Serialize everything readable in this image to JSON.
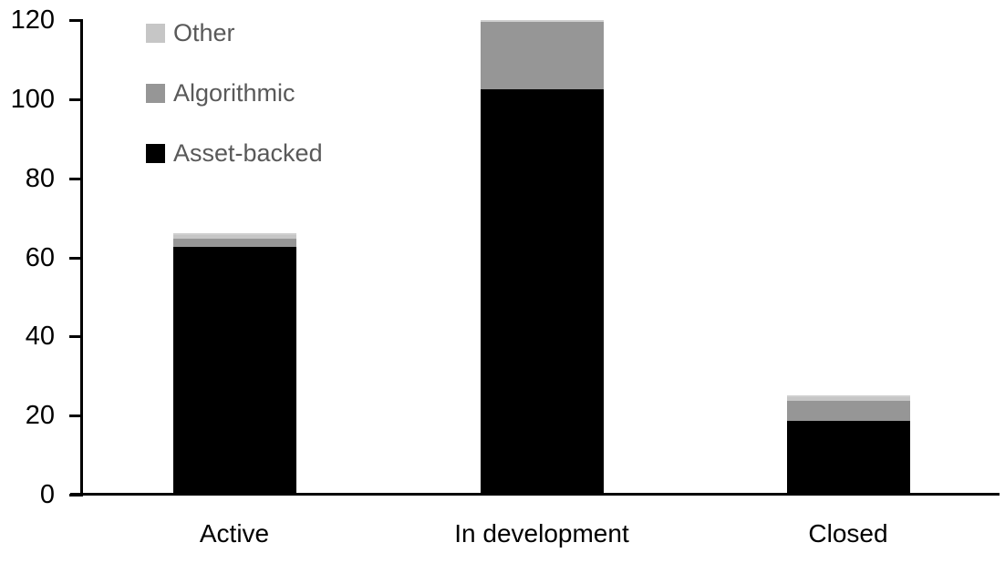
{
  "chart_data": {
    "type": "bar",
    "stacked": true,
    "title": "",
    "xlabel": "",
    "ylabel": "",
    "categories": [
      "Active",
      "In development",
      "Closed"
    ],
    "series": [
      {
        "name": "Asset-backed",
        "color": "#000000",
        "values": [
          63,
          103,
          19
        ]
      },
      {
        "name": "Algorithmic",
        "color": "#969696",
        "values": [
          2,
          17,
          5
        ]
      },
      {
        "name": "Other",
        "color": "#c6c6c6",
        "values": [
          1,
          0,
          1
        ]
      }
    ],
    "totals": [
      66,
      120,
      25
    ],
    "ylim": [
      0,
      120
    ],
    "yticks": [
      0,
      20,
      40,
      60,
      80,
      100,
      120
    ],
    "grid": false,
    "legend": {
      "position": "top-left",
      "order_top_to_bottom": [
        "Other",
        "Algorithmic",
        "Asset-backed"
      ]
    },
    "colors": {
      "axis": "#000000",
      "tick_label_text": "#000000",
      "category_label_text": "#000000",
      "legend_text": "#595959",
      "background": "#ffffff"
    }
  }
}
